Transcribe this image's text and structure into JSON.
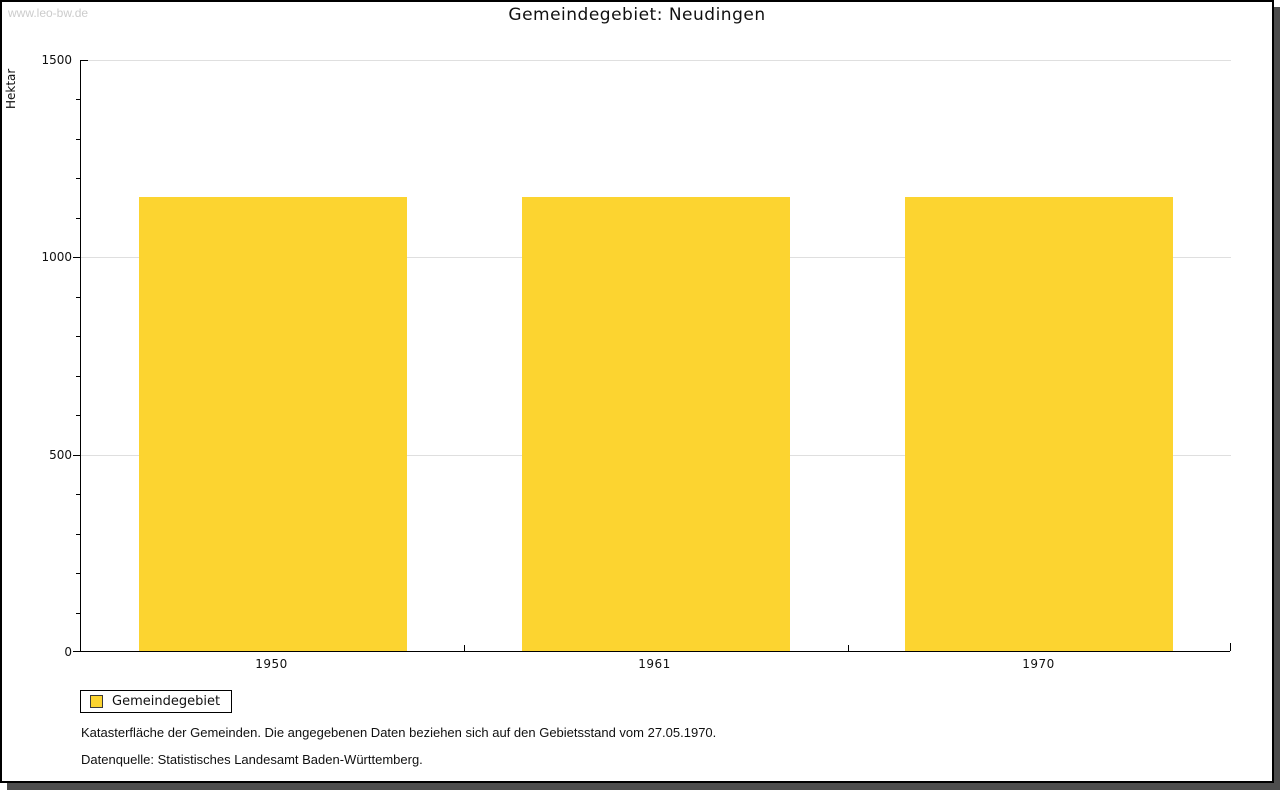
{
  "watermark": "www.leo-bw.de",
  "chart_data": {
    "type": "bar",
    "title": "Gemeindegebiet: Neudingen",
    "ylabel": "Hektar",
    "xlabel": "",
    "categories": [
      "1950",
      "1961",
      "1970"
    ],
    "series": [
      {
        "name": "Gemeindegebiet",
        "color": "#FCD430",
        "values": [
          1150,
          1150,
          1150
        ]
      }
    ],
    "ylim": [
      0,
      1500
    ],
    "yticks": [
      0,
      500,
      1000,
      1500
    ],
    "minor_tick_step": 100,
    "grid": true,
    "legend_position": "bottom-left"
  },
  "legend": {
    "label": "Gemeindegebiet"
  },
  "footnotes": [
    "Katasterfläche der Gemeinden. Die angegebenen Daten beziehen sich auf den Gebietsstand vom 27.05.1970.",
    "Datenquelle: Statistisches Landesamt Baden-Württemberg."
  ],
  "colors": {
    "bar": "#FCD430",
    "grid": "#DFDFDF",
    "axis": "#000000",
    "watermark": "#CCCCCC",
    "frame_shadow": "#4D4D4D",
    "swatch_border": "#3A3A3A"
  }
}
